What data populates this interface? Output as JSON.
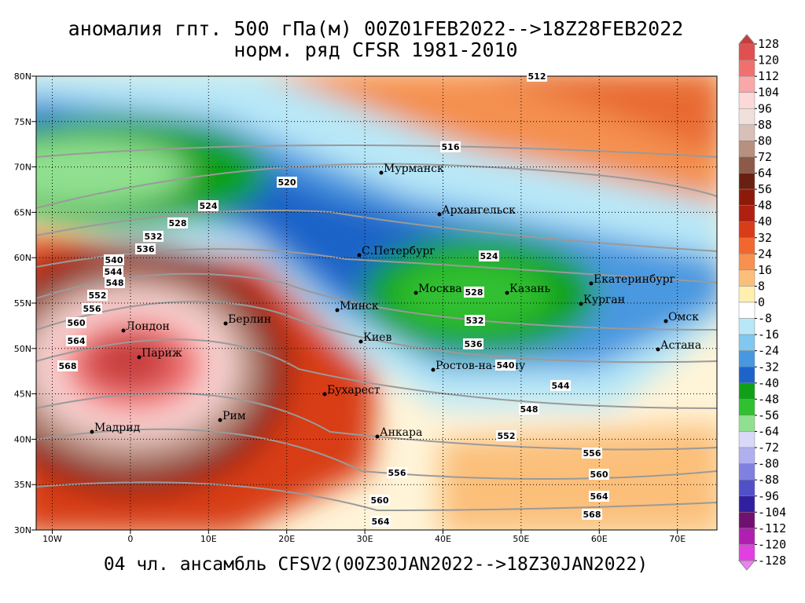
{
  "title": [
    "аномалия гпт. 500 гПа(м) 00Z01FEB2022-->18Z28FEB2022",
    "норм. ряд CFSR 1981-2010"
  ],
  "footer": "04 чл. ансамбль CFSV2(00Z30JAN2022-->18Z30JAN2022)",
  "map": {
    "lat_ticks": [
      "80N",
      "75N",
      "70N",
      "65N",
      "60N",
      "55N",
      "50N",
      "45N",
      "40N",
      "35N",
      "30N"
    ],
    "lon_ticks": [
      "10W",
      "0",
      "10E",
      "20E",
      "30E",
      "40E",
      "50E",
      "60E",
      "70E"
    ],
    "cities": [
      "Мурманск",
      "Архангельск",
      "С.Петербург",
      "Москва",
      "Казань",
      "Екатеринбург",
      "Курган",
      "Омск",
      "Астана",
      "Минск",
      "Киев",
      "Ростов-на-Дону",
      "Бухарест",
      "Анкара",
      "Берлин",
      "Лондон",
      "Париж",
      "Рим",
      "Мадрид"
    ],
    "contour_labels": [
      512,
      516,
      520,
      524,
      528,
      532,
      536,
      540,
      544,
      548,
      552,
      556,
      560,
      564,
      568,
      524,
      528,
      532,
      536,
      540,
      544,
      548,
      552,
      556,
      560,
      564,
      568,
      556,
      560,
      564
    ]
  },
  "colorbar": {
    "levels": [
      128,
      120,
      112,
      104,
      96,
      88,
      80,
      72,
      64,
      56,
      48,
      40,
      32,
      24,
      16,
      8,
      0,
      -8,
      -16,
      -24,
      -32,
      -40,
      -48,
      -56,
      -64,
      -72,
      -80,
      -88,
      -96,
      -104,
      -112,
      -120,
      -128
    ],
    "colors": [
      "#c83c3c",
      "#e05050",
      "#f07070",
      "#f8a8a8",
      "#fcd8d8",
      "#f0e0dc",
      "#d8c0b8",
      "#b89080",
      "#8c5a48",
      "#6a2010",
      "#8c1a0a",
      "#b02010",
      "#d83c18",
      "#f06830",
      "#f89050",
      "#fbbf7a",
      "#fff0b0",
      "#ffffff",
      "#b8e8f8",
      "#80c8f0",
      "#4898e0",
      "#1e64c8",
      "#10a018",
      "#30c030",
      "#90e090",
      "#d8d8f8",
      "#b0b0f0",
      "#8080e0",
      "#5050c8",
      "#3020a0",
      "#701070",
      "#b020b0",
      "#e040e0",
      "#f080f0"
    ]
  }
}
